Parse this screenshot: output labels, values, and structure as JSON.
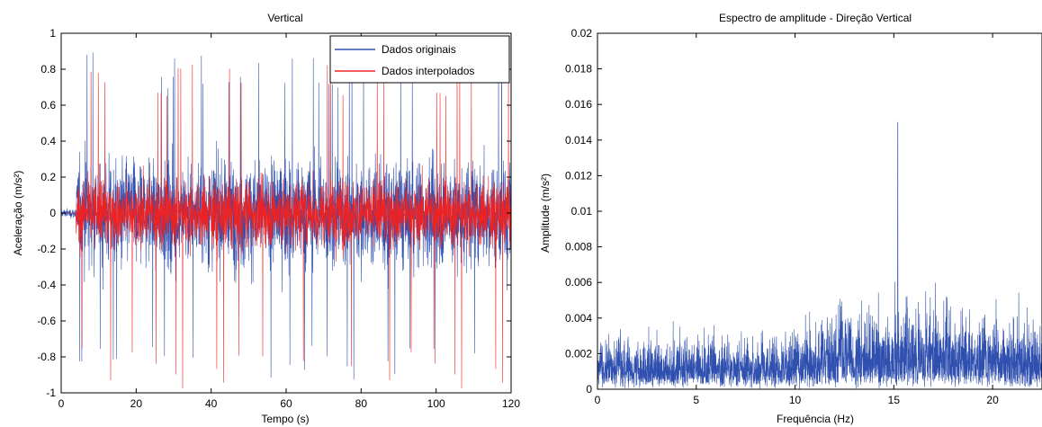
{
  "chart_data": [
    {
      "type": "line",
      "title": "Vertical",
      "xlabel": "Tempo (s)",
      "ylabel": "Aceleração (m/s²)",
      "xlim": [
        0,
        120
      ],
      "ylim": [
        -1,
        1
      ],
      "xticks": [
        0,
        20,
        40,
        60,
        80,
        100,
        120
      ],
      "yticks": [
        -1,
        -0.8,
        -0.6,
        -0.4,
        -0.2,
        0,
        0.2,
        0.4,
        0.6,
        0.8,
        1
      ],
      "xtick_labels": [
        "0",
        "20",
        "40",
        "60",
        "80",
        "100",
        "120"
      ],
      "ytick_labels": [
        "-1",
        "-0.8",
        "-0.6",
        "-0.4",
        "-0.2",
        "0",
        "0.2",
        "0.4",
        "0.6",
        "0.8",
        "1"
      ],
      "grid": false,
      "legend_position": "top-right",
      "series": [
        {
          "name": "Dados originais",
          "color": "#3050b0",
          "signal": {
            "onset_s": 4,
            "pre_amplitude": 0.03,
            "typical_amplitude": 0.35,
            "peak_max": 0.9,
            "peak_min": -0.95
          }
        },
        {
          "name": "Dados interpolados",
          "color": "#ee2222",
          "signal": {
            "onset_s": 4,
            "pre_amplitude": 0.0,
            "typical_amplitude": 0.22,
            "peak_max": 0.84,
            "peak_min": -1.0
          }
        }
      ]
    },
    {
      "type": "line",
      "title": "Espectro de amplitude - Direção Vertical",
      "xlabel": "Frequência (Hz)",
      "ylabel": "Amplitude (m/s²)",
      "xlim": [
        0,
        22.5
      ],
      "ylim": [
        0,
        0.02
      ],
      "xticks": [
        0,
        5,
        10,
        15,
        20
      ],
      "yticks": [
        0,
        0.002,
        0.004,
        0.006,
        0.008,
        0.01,
        0.012,
        0.014,
        0.016,
        0.018,
        0.02
      ],
      "xtick_labels": [
        "0",
        "5",
        "10",
        "15",
        "20"
      ],
      "ytick_labels": [
        "0",
        "0.002",
        "0.004",
        "0.006",
        "0.008",
        "0.01",
        "0.012",
        "0.014",
        "0.016",
        "0.018",
        "0.02"
      ],
      "grid": false,
      "series": [
        {
          "color": "#3050b0",
          "signal": {
            "typical_amplitude": 0.004,
            "peak_frequency_hz": 15.2,
            "peak_value": 0.015,
            "envelope_low_hz": 0.006,
            "envelope_high_hz": 0.01
          }
        }
      ]
    }
  ]
}
